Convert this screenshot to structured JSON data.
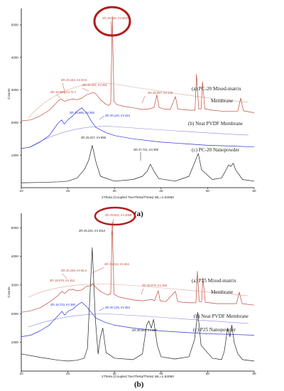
{
  "chart_data": [
    {
      "panel": "(a)",
      "type": "line",
      "xlabel": "2Theta (Coupled TwoTheta/Theta) WL=1.54060",
      "ylabel": "Counts",
      "xlim": [
        10,
        60
      ],
      "ylim": [
        0,
        5500
      ],
      "xticks": [
        "10",
        "20",
        "30",
        "40",
        "50",
        "60"
      ],
      "yticks": [
        "1000",
        "2000",
        "3000",
        "4000",
        "5000"
      ],
      "series": [
        {
          "name": "(a) PC-20 Mixed-matrix",
          "label_line2": "Membrane",
          "color": "#c24a3a",
          "x": [
            10,
            12,
            14,
            16,
            17,
            18,
            18.6,
            19.2,
            20.2,
            21,
            22,
            23,
            24,
            25,
            25.6,
            26.2,
            27,
            28,
            28.8,
            29.2,
            29.54,
            29.9,
            30.5,
            32,
            34,
            36,
            37.5,
            38.5,
            39.1,
            39.6,
            40.5,
            42,
            43.1,
            43.6,
            44.5,
            46,
            47.3,
            47.6,
            48.1,
            48.6,
            48.9,
            49.4,
            51,
            53,
            56.5,
            57.1,
            57.7,
            60
          ],
          "y": [
            2050,
            2080,
            2200,
            2380,
            2520,
            2680,
            2720,
            2650,
            2700,
            2720,
            2700,
            2750,
            2850,
            2900,
            2920,
            2850,
            2700,
            2580,
            2520,
            2600,
            5250,
            2650,
            2550,
            2500,
            2450,
            2400,
            2420,
            2460,
            2850,
            2460,
            2420,
            2400,
            2800,
            2420,
            2400,
            2380,
            2380,
            3480,
            2420,
            2420,
            3250,
            2420,
            2380,
            2350,
            2350,
            2750,
            2360,
            2300
          ]
        },
        {
          "name": "(b) Neat PVDF Membrane",
          "color": "#2a33d6",
          "x": [
            10,
            12,
            14,
            16,
            17,
            18,
            18.7,
            19.2,
            20.12,
            21,
            22,
            23,
            24,
            25,
            26,
            28,
            30,
            34,
            40,
            45,
            50,
            55,
            60
          ],
          "y": [
            1200,
            1250,
            1400,
            1600,
            1800,
            2000,
            2080,
            1950,
            2100,
            2200,
            2350,
            2450,
            2300,
            2050,
            1850,
            1700,
            1600,
            1500,
            1400,
            1350,
            1300,
            1280,
            1250
          ]
        },
        {
          "name": "(c) PC-20 Nanopowder",
          "color": "#222222",
          "x": [
            10,
            14,
            18,
            20,
            22,
            23.5,
            24.5,
            25.23,
            26,
            27,
            30,
            34,
            36,
            37,
            37.72,
            38.5,
            39.5,
            43,
            46,
            47.3,
            48,
            48.7,
            51,
            53,
            53.8,
            54.5,
            55,
            55.5,
            56,
            57.5,
            60
          ],
          "y": [
            150,
            160,
            180,
            200,
            300,
            550,
            850,
            1300,
            800,
            350,
            200,
            250,
            350,
            500,
            720,
            500,
            280,
            200,
            350,
            800,
            1050,
            550,
            250,
            300,
            500,
            700,
            650,
            750,
            550,
            250,
            200
          ]
        }
      ],
      "annotations": [
        {
          "text": "2th 29.535, Int 5037",
          "color": "#c24a3a",
          "circled": true
        },
        {
          "text": "2th 20.162, Int 20.5",
          "color": "#c24a3a"
        },
        {
          "text": "2th 25.631, Int 281",
          "color": "#c24a3a"
        },
        {
          "text": "2th 18.586, Int 73.7",
          "color": "#c24a3a"
        },
        {
          "text": "2th 38.097, Int 178",
          "color": "#c24a3a"
        },
        {
          "text": "2th 18.685, Int 350",
          "color": "#2a33d6"
        },
        {
          "text": "2th 20.120, Int 343",
          "color": "#2a33d6"
        },
        {
          "text": "2th 25.227, Int 998",
          "color": "#222222"
        },
        {
          "text": "2th 37.721, Int 269",
          "color": "#222222"
        }
      ]
    },
    {
      "panel": "(b)",
      "type": "line",
      "xlabel": "2Theta (Coupled TwoTheta/Theta) WL=1.54060",
      "ylabel": "Counts",
      "xlim": [
        10,
        60
      ],
      "ylim": [
        0,
        5500
      ],
      "xticks": [
        "10",
        "20",
        "30",
        "40",
        "50",
        "60"
      ],
      "yticks": [
        "1000",
        "2000",
        "3000",
        "4000",
        "5000"
      ],
      "series": [
        {
          "name": "(a) P25 Mixed-matrix",
          "label_line2": "Membrane",
          "color": "#c24a3a",
          "x": [
            10,
            12,
            14,
            16,
            17,
            18,
            18.7,
            19.3,
            20.16,
            21,
            22,
            23,
            24,
            25,
            25.3,
            25.8,
            27,
            28.5,
            29.2,
            29.53,
            29.9,
            31,
            34,
            36,
            38.07,
            38.6,
            39.4,
            39.8,
            41,
            43.1,
            43.6,
            44.5,
            46,
            47.5,
            47.8,
            48.2,
            48.7,
            49,
            49.5,
            52,
            56.2,
            56.8,
            57.4,
            60
          ],
          "y": [
            2050,
            2100,
            2200,
            2400,
            2520,
            2650,
            2780,
            2700,
            2830,
            2850,
            2800,
            2830,
            2950,
            2980,
            3050,
            2950,
            2780,
            2650,
            2700,
            5200,
            2680,
            2580,
            2480,
            2450,
            2500,
            2450,
            2800,
            2450,
            2420,
            2780,
            2420,
            2400,
            2380,
            2380,
            3480,
            2420,
            2420,
            3250,
            2400,
            2350,
            2350,
            2750,
            2350,
            2300
          ]
        },
        {
          "name": "(b) Neat PVDF Membrane",
          "color": "#2a33d6",
          "x": [
            10,
            12,
            14,
            16,
            17,
            18,
            18.72,
            19.3,
            20.12,
            21,
            22,
            23,
            24,
            25,
            26,
            28,
            30,
            34,
            40,
            45,
            50,
            55,
            60
          ],
          "y": [
            1200,
            1250,
            1400,
            1600,
            1780,
            1950,
            2080,
            1950,
            2100,
            2150,
            2300,
            2400,
            2250,
            2050,
            1850,
            1700,
            1600,
            1500,
            1400,
            1350,
            1300,
            1280,
            1250
          ]
        },
        {
          "name": "(c) P25 Nanopowder",
          "color": "#222222",
          "x": [
            10,
            14,
            18,
            20,
            22,
            23.5,
            24.2,
            24.6,
            25.23,
            25.9,
            26.5,
            27,
            27.5,
            28.2,
            30,
            34,
            36,
            36.9,
            37.4,
            37.9,
            38.4,
            39.2,
            40,
            43,
            46,
            47.2,
            47.9,
            48.6,
            51,
            53,
            53.6,
            54.3,
            54.8,
            55.2,
            55.7,
            56.5,
            57.5,
            60
          ],
          "y": [
            600,
            480,
            380,
            350,
            380,
            450,
            800,
            2200,
            4300,
            1800,
            600,
            1200,
            1500,
            650,
            450,
            400,
            600,
            1600,
            1750,
            1500,
            1800,
            900,
            500,
            420,
            500,
            1100,
            2050,
            900,
            450,
            400,
            700,
            1500,
            1200,
            1600,
            1000,
            600,
            400,
            350
          ]
        }
      ],
      "annotations": [
        {
          "text": "2th 29.532, Int 3089",
          "color": "#c24a3a",
          "circled": true
        },
        {
          "text": "2th 25.231, Int 4312",
          "color": "#222222"
        },
        {
          "text": "2th 25.313, Int 464",
          "color": "#c24a3a"
        },
        {
          "text": "2th 20.159, Int 56.3",
          "color": "#c24a3a"
        },
        {
          "text": "2th 18.676, Int 153",
          "color": "#c24a3a"
        },
        {
          "text": "2th 38.070, Int 188",
          "color": "#c24a3a"
        },
        {
          "text": "2th 18.723, Int 380",
          "color": "#2a33d6"
        },
        {
          "text": "2th 20.125, Int 384",
          "color": "#2a33d6"
        },
        {
          "text": "2th 35.995, Int 340",
          "color": "#222222"
        }
      ]
    }
  ]
}
